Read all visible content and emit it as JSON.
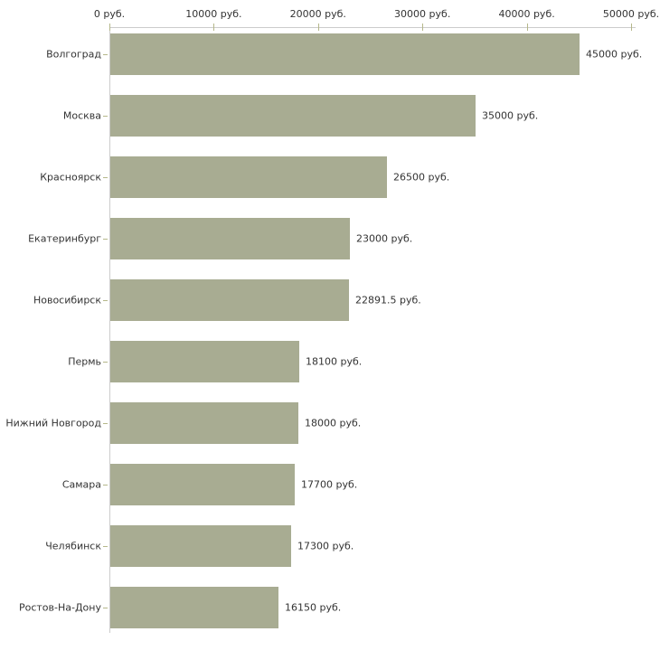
{
  "chart_data": {
    "type": "bar",
    "orientation": "horizontal",
    "title": "",
    "categories": [
      "Волгоград",
      "Москва",
      "Красноярск",
      "Екатеринбург",
      "Новосибирск",
      "Пермь",
      "Нижний Новгород",
      "Самара",
      "Челябинск",
      "Ростов-На-Дону"
    ],
    "values": [
      45000,
      35000,
      26500,
      23000,
      22891.5,
      18100,
      18000,
      17700,
      17300,
      16150
    ],
    "value_labels": [
      "45000 руб.",
      "35000 руб.",
      "26500 руб.",
      "23000 руб.",
      "22891.5 руб.",
      "18100 руб.",
      "18000 руб.",
      "17700 руб.",
      "17300 руб.",
      "16150 руб."
    ],
    "x_axis": {
      "position": "top",
      "xlim": [
        0,
        50000
      ],
      "ticks": [
        0,
        10000,
        20000,
        30000,
        40000,
        50000
      ],
      "tick_labels": [
        "0 руб.",
        "10000 руб.",
        "20000 руб.",
        "30000 руб.",
        "40000 руб.",
        "50000 руб."
      ]
    },
    "unit": "руб.",
    "grid": false,
    "legend": false,
    "colors": {
      "bar": "#a8ac92",
      "axis_line": "#cccccc",
      "tick_mark": "#b5b78a",
      "text": "#333333",
      "background": "#ffffff"
    }
  }
}
